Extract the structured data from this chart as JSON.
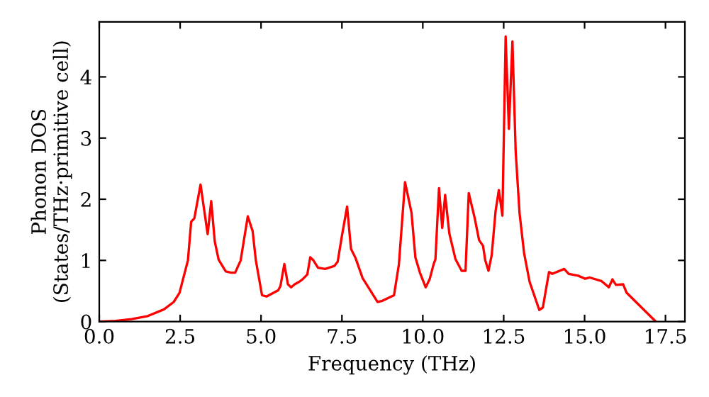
{
  "chart_data": {
    "type": "line",
    "xlabel": "Frequency (THz)",
    "ylabel": "Phonon DOS\n(States/THz·primitive cell)",
    "xlim": [
      0,
      18.1
    ],
    "ylim": [
      0,
      4.9
    ],
    "xticks": [
      {
        "value": 0,
        "label": "0.0"
      },
      {
        "value": 2.5,
        "label": "2.5"
      },
      {
        "value": 5,
        "label": "5.0"
      },
      {
        "value": 7.5,
        "label": "7.5"
      },
      {
        "value": 10,
        "label": "10.0"
      },
      {
        "value": 12.5,
        "label": "12.5"
      },
      {
        "value": 15,
        "label": "15.0"
      },
      {
        "value": 17.5,
        "label": "17.5"
      }
    ],
    "yticks": [
      0,
      1,
      2,
      3,
      4
    ],
    "grid": false,
    "legend": false,
    "marker": "none",
    "line_style": "solid",
    "series": [
      {
        "color": "#ff0000",
        "x": [
          0,
          0.5,
          1.0,
          1.5,
          2.0,
          2.3,
          2.48,
          2.74,
          2.84,
          2.94,
          3.13,
          3.35,
          3.46,
          3.57,
          3.69,
          3.91,
          4.08,
          4.2,
          4.37,
          4.59,
          4.74,
          4.84,
          5.03,
          5.17,
          5.53,
          5.6,
          5.72,
          5.83,
          5.93,
          6.04,
          6.18,
          6.28,
          6.43,
          6.52,
          6.62,
          6.76,
          6.98,
          7.27,
          7.37,
          7.49,
          7.66,
          7.78,
          7.92,
          8.14,
          8.6,
          8.75,
          9.11,
          9.26,
          9.45,
          9.65,
          9.77,
          9.91,
          10.09,
          10.21,
          10.33,
          10.39,
          10.5,
          10.6,
          10.69,
          10.82,
          11.01,
          11.2,
          11.32,
          11.42,
          11.6,
          11.74,
          11.86,
          11.93,
          12.03,
          12.13,
          12.25,
          12.35,
          12.46,
          12.56,
          12.66,
          12.77,
          12.87,
          12.99,
          13.13,
          13.3,
          13.6,
          13.71,
          13.9,
          14.0,
          14.37,
          14.51,
          14.8,
          15.02,
          15.16,
          15.53,
          15.75,
          15.86,
          15.97,
          16.19,
          16.3,
          17.2
        ],
        "values": [
          0,
          0.01,
          0.04,
          0.09,
          0.2,
          0.32,
          0.47,
          1.0,
          1.63,
          1.69,
          2.24,
          1.43,
          1.97,
          1.31,
          1.01,
          0.82,
          0.8,
          0.8,
          1.0,
          1.72,
          1.48,
          1.0,
          0.43,
          0.41,
          0.51,
          0.58,
          0.94,
          0.61,
          0.56,
          0.61,
          0.65,
          0.69,
          0.77,
          1.05,
          1.0,
          0.88,
          0.86,
          0.91,
          0.98,
          1.37,
          1.88,
          1.19,
          1.04,
          0.71,
          0.32,
          0.34,
          0.43,
          0.93,
          2.28,
          1.78,
          1.05,
          0.8,
          0.56,
          0.69,
          0.93,
          1.02,
          2.18,
          1.53,
          2.07,
          1.44,
          1.02,
          0.83,
          0.83,
          2.1,
          1.7,
          1.33,
          1.24,
          1.0,
          0.83,
          1.09,
          1.81,
          2.15,
          1.73,
          4.66,
          3.15,
          4.58,
          2.78,
          1.77,
          1.12,
          0.65,
          0.19,
          0.23,
          0.81,
          0.78,
          0.86,
          0.78,
          0.75,
          0.7,
          0.72,
          0.66,
          0.56,
          0.69,
          0.6,
          0.61,
          0.47,
          0
        ]
      }
    ]
  }
}
